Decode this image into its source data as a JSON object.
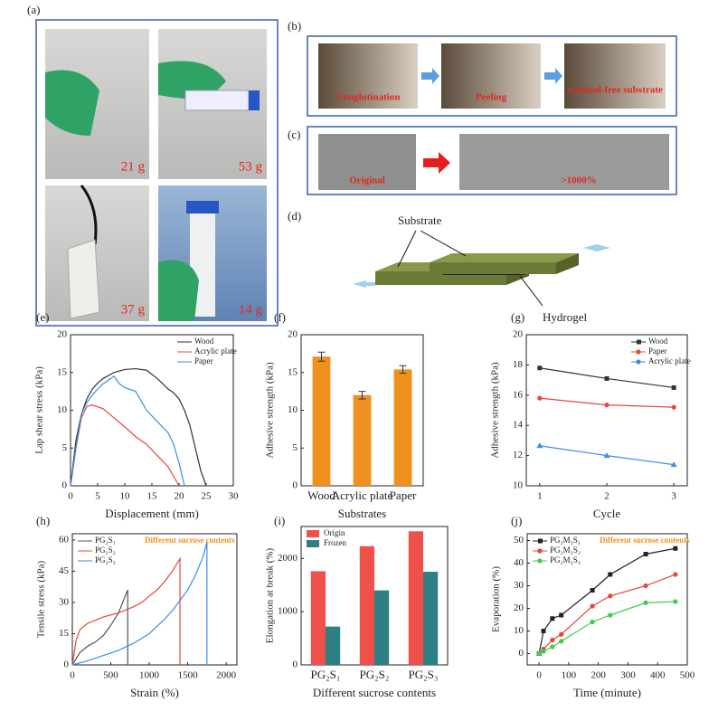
{
  "panel_labels": [
    "(a)",
    "(b)",
    "(c)",
    "(d)"
  ],
  "weights": [
    "21 g",
    "53 g",
    "37 g",
    "14 g"
  ],
  "peeling_steps": [
    "Conglutination",
    "Peeling",
    "residual-free substrate"
  ],
  "stretch": [
    "Original",
    ">1000%"
  ],
  "diagram": {
    "substrate": "Substrate",
    "hydrogel": "Hydrogel"
  },
  "chart_data": [
    {
      "type": "line",
      "label": "(e)",
      "xlabel": "Displacement (mm)",
      "ylabel": "Lap shear stress (kPa)",
      "xlim": [
        0,
        30
      ],
      "ylim": [
        0,
        20
      ],
      "xticks": [
        0,
        5,
        10,
        15,
        20,
        25,
        30
      ],
      "yticks": [
        0,
        5,
        10,
        15,
        20
      ],
      "legend": "upper right",
      "series": [
        {
          "name": "Wood",
          "color": "#333333",
          "x": [
            0,
            1,
            2,
            3,
            4,
            5,
            6,
            8,
            10,
            12,
            14,
            16,
            18,
            19,
            20,
            21,
            22,
            23,
            24,
            25
          ],
          "values": [
            0,
            6,
            9.5,
            11.5,
            12.8,
            13.6,
            14.2,
            15,
            15.4,
            15.5,
            15.3,
            14.2,
            12.8,
            12.3,
            11.5,
            10,
            8,
            5,
            2,
            0
          ]
        },
        {
          "name": "Acrylic plate",
          "color": "#e8453c",
          "x": [
            0,
            1,
            2,
            3,
            4,
            6,
            8,
            10,
            12,
            14,
            16,
            18,
            20
          ],
          "values": [
            0,
            5,
            9,
            10.5,
            10.7,
            10.2,
            9,
            7.8,
            6.5,
            5.5,
            4,
            2.5,
            0
          ]
        },
        {
          "name": "Paper",
          "color": "#3a8ee6",
          "x": [
            0,
            1,
            2,
            3,
            4,
            5,
            6,
            7,
            8,
            9,
            10,
            12,
            14,
            16,
            18,
            19,
            20,
            21
          ],
          "values": [
            0,
            5,
            9.5,
            11,
            12,
            12.8,
            13.5,
            14,
            14.5,
            13.5,
            13,
            12.5,
            10,
            8.5,
            7,
            5.5,
            3,
            0
          ]
        }
      ]
    },
    {
      "type": "bar",
      "label": "(f)",
      "xlabel": "Substrates",
      "ylabel": "Adhesive strength (kPa)",
      "categories": [
        "Wood",
        "Acrylic plate",
        "Paper"
      ],
      "values": [
        17.1,
        12.0,
        15.4
      ],
      "errors": [
        0.6,
        0.5,
        0.5
      ],
      "color": "#f0901e",
      "ylim": [
        0,
        20
      ],
      "yticks": [
        0,
        5,
        10,
        15,
        20
      ]
    },
    {
      "type": "line",
      "label": "(g)",
      "xlabel": "Cycle",
      "ylabel": "Adhesive strength (kPa)",
      "xlim": [
        0.8,
        3.2
      ],
      "ylim": [
        10,
        20
      ],
      "xticks": [
        1,
        2,
        3
      ],
      "yticks": [
        10,
        12,
        14,
        16,
        18,
        20
      ],
      "legend": "upper right",
      "series": [
        {
          "name": "Wood",
          "color": "#333333",
          "marker": "square",
          "x": [
            1,
            2,
            3
          ],
          "values": [
            17.8,
            17.1,
            16.5
          ]
        },
        {
          "name": "Paper",
          "color": "#e8453c",
          "marker": "circle",
          "x": [
            1,
            2,
            3
          ],
          "values": [
            15.8,
            15.35,
            15.2
          ]
        },
        {
          "name": "Acrylic plate",
          "color": "#3a8ee6",
          "marker": "triangle",
          "x": [
            1,
            2,
            3
          ],
          "values": [
            12.65,
            12.0,
            11.4
          ]
        }
      ]
    },
    {
      "type": "line",
      "label": "(h)",
      "xlabel": "Strain (%)",
      "ylabel": "Tensile stress (kPa)",
      "annotation": "Different sucrose contents",
      "annotation_color": "#f0901e",
      "xlim": [
        0,
        2140
      ],
      "ylim": [
        0,
        63
      ],
      "xticks": [
        0,
        500,
        1000,
        1500,
        2000
      ],
      "yticks": [
        0,
        15,
        30,
        45,
        60
      ],
      "legend": "upper left",
      "series": [
        {
          "name": "PG₂S₁",
          "color": "#555555",
          "x": [
            0,
            100,
            200,
            300,
            400,
            500,
            600,
            720,
            720
          ],
          "values": [
            0,
            6,
            9,
            11,
            14,
            19,
            25,
            36,
            0
          ]
        },
        {
          "name": "PG₂S₂",
          "color": "#e8453c",
          "x": [
            0,
            50,
            100,
            200,
            300,
            400,
            500,
            600,
            700,
            800,
            900,
            1000,
            1100,
            1200,
            1300,
            1400,
            1400
          ],
          "values": [
            0,
            12,
            17,
            20,
            21.5,
            23,
            24,
            25,
            26.5,
            28,
            30,
            33,
            36,
            40,
            45,
            51,
            0
          ]
        },
        {
          "name": "PG₂S₃",
          "color": "#3a8ee6",
          "x": [
            0,
            200,
            400,
            600,
            800,
            1000,
            1200,
            1300,
            1400,
            1500,
            1600,
            1700,
            1750,
            1750
          ],
          "values": [
            0,
            2,
            4.5,
            7,
            10.5,
            15,
            22,
            26,
            31,
            36,
            43,
            52,
            59,
            0
          ]
        }
      ]
    },
    {
      "type": "bar",
      "label": "(i)",
      "xlabel": "Different sucrose contents",
      "ylabel": "Elongation at break (%)",
      "categories": [
        "PG₂S₁",
        "PG₂S₂",
        "PG₂S₃"
      ],
      "ylim": [
        0,
        2600
      ],
      "yticks": [
        0,
        1000,
        2000
      ],
      "legend": "upper left",
      "series": [
        {
          "name": "Origin",
          "color": "#f0504a",
          "values": [
            1760,
            2230,
            2510
          ]
        },
        {
          "name": "Frozen",
          "color": "#2f7f86",
          "values": [
            720,
            1400,
            1750
          ]
        }
      ]
    },
    {
      "type": "line",
      "label": "(j)",
      "xlabel": "Time (minute)",
      "ylabel": "Evaporation (%)",
      "annotation": "Different sucrose contents",
      "annotation_color": "#f0901e",
      "xlim": [
        -40,
        500
      ],
      "ylim": [
        -5,
        53
      ],
      "xticks": [
        0,
        100,
        200,
        300,
        400,
        500
      ],
      "yticks": [
        0,
        10,
        20,
        30,
        40,
        50
      ],
      "legend": "upper left",
      "series": [
        {
          "name": "PG₂M₂S₁",
          "color": "#222222",
          "marker": "square",
          "x": [
            0,
            15,
            45,
            75,
            180,
            240,
            360,
            460
          ],
          "values": [
            0,
            10,
            15.5,
            17,
            28,
            35,
            44,
            46.5
          ]
        },
        {
          "name": "PG₂M₂S₂",
          "color": "#e8453c",
          "marker": "circle",
          "x": [
            0,
            15,
            45,
            75,
            180,
            240,
            360,
            460
          ],
          "values": [
            0,
            2,
            6,
            8.5,
            21,
            25.5,
            30,
            35
          ]
        },
        {
          "name": "PG₂M₂S₃",
          "color": "#3ecf4a",
          "marker": "circle",
          "x": [
            0,
            15,
            45,
            75,
            180,
            240,
            360,
            460
          ],
          "values": [
            0,
            1,
            3,
            5.5,
            14,
            17,
            22.5,
            23
          ]
        }
      ]
    }
  ]
}
